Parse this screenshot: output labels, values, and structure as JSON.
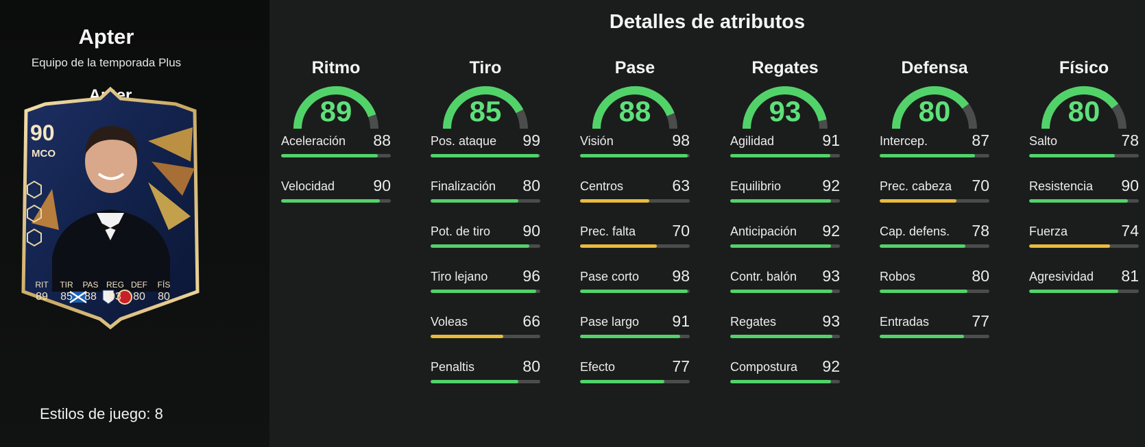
{
  "player": {
    "name": "Apter",
    "subtitle": "Equipo de la temporada Plus",
    "playstyles_label": "Estilos de juego:",
    "playstyles_count": "8"
  },
  "card": {
    "rating": "90",
    "position": "MCO",
    "name": "Apter",
    "stats": [
      {
        "label": "RIT",
        "value": "89"
      },
      {
        "label": "TIR",
        "value": "85"
      },
      {
        "label": "PAS",
        "value": "88"
      },
      {
        "label": "REG",
        "value": "93"
      },
      {
        "label": "DEF",
        "value": "80"
      },
      {
        "label": "FÍS",
        "value": "80"
      }
    ]
  },
  "details": {
    "title": "Detalles de atributos",
    "colors": {
      "high": "#52d36a",
      "mid": "#e9bb3c",
      "track": "#4a4d4b"
    },
    "categories": [
      {
        "name": "Ritmo",
        "value": "89",
        "attributes": [
          {
            "name": "Aceleración",
            "value": "88"
          },
          {
            "name": "Velocidad",
            "value": "90"
          }
        ]
      },
      {
        "name": "Tiro",
        "value": "85",
        "attributes": [
          {
            "name": "Pos. ataque",
            "value": "99"
          },
          {
            "name": "Finalización",
            "value": "80"
          },
          {
            "name": "Pot. de tiro",
            "value": "90"
          },
          {
            "name": "Tiro lejano",
            "value": "96"
          },
          {
            "name": "Voleas",
            "value": "66"
          },
          {
            "name": "Penaltis",
            "value": "80"
          }
        ]
      },
      {
        "name": "Pase",
        "value": "88",
        "attributes": [
          {
            "name": "Visión",
            "value": "98"
          },
          {
            "name": "Centros",
            "value": "63"
          },
          {
            "name": "Prec. falta",
            "value": "70"
          },
          {
            "name": "Pase corto",
            "value": "98"
          },
          {
            "name": "Pase largo",
            "value": "91"
          },
          {
            "name": "Efecto",
            "value": "77"
          }
        ]
      },
      {
        "name": "Regates",
        "value": "93",
        "attributes": [
          {
            "name": "Agilidad",
            "value": "91"
          },
          {
            "name": "Equilibrio",
            "value": "92"
          },
          {
            "name": "Anticipación",
            "value": "92"
          },
          {
            "name": "Contr. balón",
            "value": "93"
          },
          {
            "name": "Regates",
            "value": "93"
          },
          {
            "name": "Compostura",
            "value": "92"
          }
        ]
      },
      {
        "name": "Defensa",
        "value": "80",
        "attributes": [
          {
            "name": "Intercep.",
            "value": "87"
          },
          {
            "name": "Prec. cabeza",
            "value": "70"
          },
          {
            "name": "Cap. defens.",
            "value": "78"
          },
          {
            "name": "Robos",
            "value": "80"
          },
          {
            "name": "Entradas",
            "value": "77"
          }
        ]
      },
      {
        "name": "Físico",
        "value": "80",
        "attributes": [
          {
            "name": "Salto",
            "value": "78"
          },
          {
            "name": "Resistencia",
            "value": "90"
          },
          {
            "name": "Fuerza",
            "value": "74"
          },
          {
            "name": "Agresividad",
            "value": "81"
          }
        ]
      }
    ]
  }
}
